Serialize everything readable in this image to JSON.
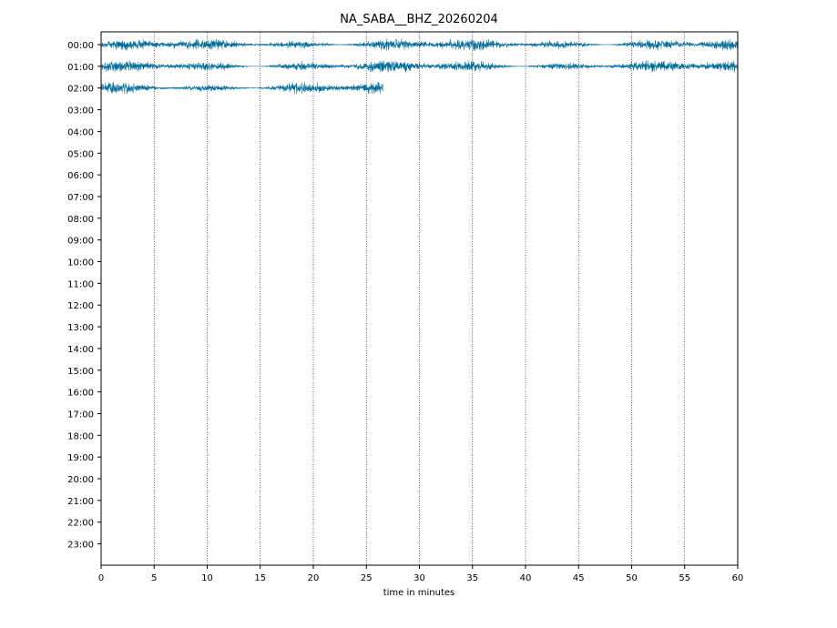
{
  "chart_data": {
    "type": "line",
    "title": "NA_SABA__BHZ_20260204",
    "xlabel": "time in minutes",
    "ylabel": "",
    "xlim": [
      0,
      60
    ],
    "x_ticks": [
      0,
      5,
      10,
      15,
      20,
      25,
      30,
      35,
      40,
      45,
      50,
      55,
      60
    ],
    "x_tick_labels": [
      "0",
      "5",
      "10",
      "15",
      "20",
      "25",
      "30",
      "35",
      "40",
      "45",
      "50",
      "55",
      "60"
    ],
    "y_tick_labels": [
      "00:00",
      "01:00",
      "02:00",
      "03:00",
      "04:00",
      "05:00",
      "06:00",
      "07:00",
      "08:00",
      "09:00",
      "10:00",
      "11:00",
      "12:00",
      "13:00",
      "14:00",
      "15:00",
      "16:00",
      "17:00",
      "18:00",
      "19:00",
      "20:00",
      "21:00",
      "22:00",
      "23:00"
    ],
    "grid": "vertical dotted",
    "trace_color": "#006b99",
    "series": [
      {
        "row": "00:00",
        "start_min": 0,
        "end_min": 60
      },
      {
        "row": "01:00",
        "start_min": 0,
        "end_min": 60
      },
      {
        "row": "02:00",
        "start_min": 0,
        "end_min": 26.6
      }
    ]
  }
}
